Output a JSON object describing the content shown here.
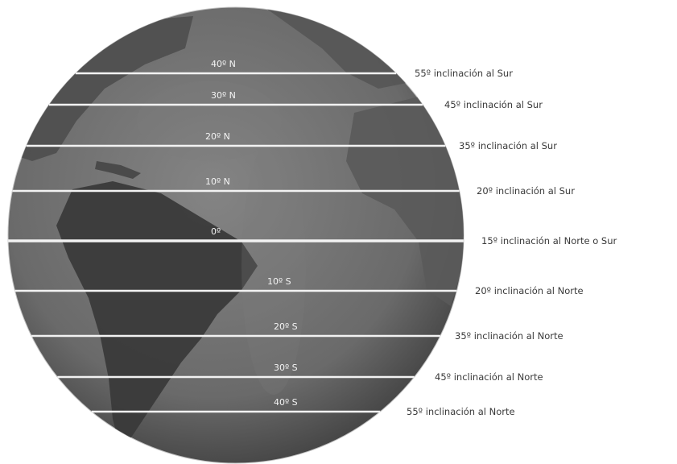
{
  "colors": {
    "ocean": "#6f6f6f",
    "land": "#474747",
    "line": "#f2f2f2",
    "label_text": "#3a3a3a"
  },
  "parallels": [
    {
      "latitude": "40º N",
      "inclination": "55º inclinación al Sur"
    },
    {
      "latitude": "30º N",
      "inclination": "45º inclinación al Sur"
    },
    {
      "latitude": "20º N",
      "inclination": "35º inclinación al Sur"
    },
    {
      "latitude": "10º N",
      "inclination": "20º inclinación al Sur"
    },
    {
      "latitude": "0º",
      "inclination": "15º inclinación al Norte o Sur"
    },
    {
      "latitude": "10º S",
      "inclination": "20º inclinación al Norte"
    },
    {
      "latitude": "20º S",
      "inclination": "35º inclinación al Norte"
    },
    {
      "latitude": "30º S",
      "inclination": "45º inclinación al Norte"
    },
    {
      "latitude": "40º S",
      "inclination": "55º inclinación al Norte"
    }
  ]
}
